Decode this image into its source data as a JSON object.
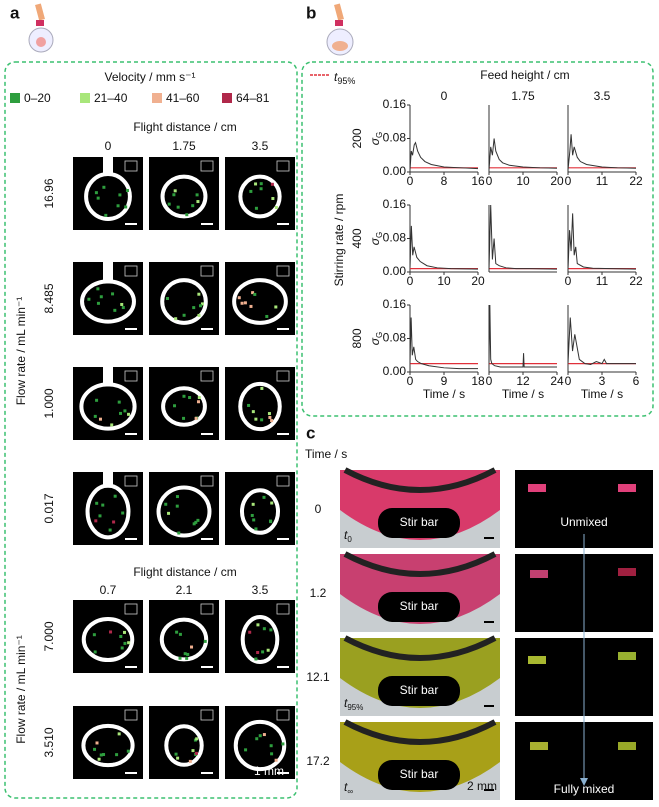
{
  "panel_a": {
    "letter": "a",
    "legend_title": "Velocity / mm s⁻¹",
    "legend": [
      {
        "label": "0–20",
        "color": "#2e9e3e"
      },
      {
        "label": "21–40",
        "color": "#a8e67a"
      },
      {
        "label": "41–60",
        "color": "#f0b090"
      },
      {
        "label": "64–81",
        "color": "#b0284a"
      }
    ],
    "sections": [
      {
        "title": "Flight distance / cm",
        "columns": [
          "0",
          "1.75",
          "3.5"
        ],
        "y_label": "Flow rate / mL min⁻¹",
        "rows": [
          "16.96",
          "8.485",
          "1.000",
          "0.017"
        ]
      },
      {
        "title": "Flight distance / cm",
        "columns": [
          "0.7",
          "2.1",
          "3.5"
        ],
        "y_label": "Flow rate / mL min⁻¹",
        "rows": [
          "7.000",
          "3.510"
        ]
      }
    ],
    "scale_bar": "1 mm"
  },
  "panel_b": {
    "letter": "b",
    "legend": {
      "main": "t",
      "sub": "95%"
    },
    "column_title": "Feed height / cm",
    "columns": [
      "0",
      "1.75",
      "3.5"
    ],
    "row_title": "Stirring rate / rpm",
    "rows": [
      "200",
      "400",
      "800"
    ]
  },
  "panel_c": {
    "letter": "c",
    "time_label": "Time / s",
    "rows": [
      {
        "time": "0",
        "tag": {
          "main": "t",
          "sub": "0"
        }
      },
      {
        "time": "1.2"
      },
      {
        "time": "12.1",
        "tag": {
          "main": "t",
          "sub": "95%"
        }
      },
      {
        "time": "17.2",
        "tag": {
          "main": "t",
          "sub": "∞"
        }
      }
    ],
    "stir_bar": "Stir bar",
    "scale_bar": "2 mm",
    "unmixed": "Unmixed",
    "fully_mixed": "Fully mixed"
  },
  "chart_data": [
    {
      "type": "line",
      "x": [
        0,
        0.3,
        0.6,
        1,
        1.3,
        1.8,
        2.5,
        3.5,
        5,
        8,
        12,
        16
      ],
      "series": [
        {
          "color": "#333333",
          "values": [
            0.005,
            0.05,
            0.04,
            0.065,
            0.07,
            0.05,
            0.035,
            0.025,
            0.018,
            0.012,
            0.01,
            0.008
          ]
        }
      ],
      "threshold": {
        "value": 0.01,
        "color": "#e0303a"
      },
      "xlim": [
        0,
        16
      ],
      "ylim": [
        0,
        0.16
      ],
      "xticks": [
        0,
        8,
        16
      ],
      "yticks": [
        {
          "value": 0,
          "label": "0.00"
        },
        {
          "value": 0.08,
          "label": "0.08"
        },
        {
          "value": 0.16,
          "label": "0.16"
        }
      ],
      "ylabel": {
        "main": "σ",
        "sub": "G"
      }
    },
    {
      "type": "line",
      "x": [
        0,
        0.5,
        1,
        1.5,
        2,
        3,
        4,
        6,
        10,
        15,
        20
      ],
      "series": [
        {
          "color": "#333333",
          "values": [
            0.005,
            0.06,
            0.04,
            0.08,
            0.05,
            0.03,
            0.022,
            0.016,
            0.012,
            0.01,
            0.009
          ]
        }
      ],
      "threshold": {
        "value": 0.01,
        "color": "#e0303a"
      },
      "xlim": [
        0,
        20
      ],
      "ylim": [
        0,
        0.16
      ],
      "xticks": [
        0,
        10,
        20
      ]
    },
    {
      "type": "line",
      "x": [
        0,
        0.6,
        1,
        1.5,
        2,
        3,
        4,
        6,
        11,
        16,
        22
      ],
      "series": [
        {
          "color": "#333333",
          "values": [
            0.005,
            0.05,
            0.09,
            0.04,
            0.06,
            0.035,
            0.025,
            0.018,
            0.012,
            0.01,
            0.009
          ]
        }
      ],
      "threshold": {
        "value": 0.01,
        "color": "#e0303a"
      },
      "xlim": [
        0,
        22
      ],
      "ylim": [
        0,
        0.16
      ],
      "xticks": [
        0,
        11,
        22
      ]
    },
    {
      "type": "line",
      "x": [
        0,
        0.4,
        0.8,
        1.2,
        2,
        3,
        5,
        8,
        12,
        20
      ],
      "series": [
        {
          "color": "#333333",
          "values": [
            0.01,
            0.11,
            0.04,
            0.06,
            0.035,
            0.025,
            0.015,
            0.01,
            0.008,
            0.007
          ]
        }
      ],
      "threshold": {
        "value": 0.008,
        "color": "#e0303a"
      },
      "xlim": [
        0,
        20
      ],
      "ylim": [
        0,
        0.16
      ],
      "xticks": [
        0,
        10,
        20
      ],
      "yticks": [
        {
          "value": 0,
          "label": "0.00"
        },
        {
          "value": 0.08,
          "label": "0.08"
        },
        {
          "value": 0.16,
          "label": "0.16"
        }
      ],
      "ylabel": {
        "main": "σ",
        "sub": "G"
      }
    },
    {
      "type": "line",
      "x": [
        0,
        0.5,
        1,
        1.5,
        2,
        3,
        5,
        8,
        12,
        20
      ],
      "series": [
        {
          "color": "#333333",
          "values": [
            0.005,
            0.16,
            0.03,
            0.08,
            0.02,
            0.015,
            0.01,
            0.008,
            0.008,
            0.007
          ]
        }
      ],
      "threshold": {
        "value": 0.008,
        "color": "#e0303a"
      },
      "xlim": [
        0,
        20
      ],
      "ylim": [
        0,
        0.16
      ]
    },
    {
      "type": "line",
      "x": [
        0,
        0.5,
        1,
        1.5,
        2,
        2.5,
        3,
        5,
        8,
        14,
        22
      ],
      "series": [
        {
          "color": "#333333",
          "values": [
            0.005,
            0.1,
            0.05,
            0.14,
            0.04,
            0.06,
            0.02,
            0.012,
            0.009,
            0.008,
            0.007
          ]
        }
      ],
      "threshold": {
        "value": 0.008,
        "color": "#e0303a"
      },
      "xlim": [
        0,
        22
      ],
      "ylim": [
        0,
        0.16
      ],
      "xticks": [
        0,
        11,
        22
      ]
    },
    {
      "type": "line",
      "x": [
        0,
        0.3,
        0.6,
        1,
        1.5,
        2,
        3,
        5,
        9,
        13,
        18
      ],
      "series": [
        {
          "color": "#333333",
          "values": [
            0.02,
            0.13,
            0.04,
            0.06,
            0.03,
            0.025,
            0.02,
            0.015,
            0.01,
            0.008,
            0.008
          ]
        }
      ],
      "threshold": {
        "value": 0.02,
        "color": "#e0303a"
      },
      "xlim": [
        0,
        18
      ],
      "ylim": [
        0,
        0.16
      ],
      "xticks": [
        0,
        9,
        18
      ],
      "yticks": [
        {
          "value": 0,
          "label": "0.00"
        },
        {
          "value": 0.08,
          "label": "0.08"
        },
        {
          "value": 0.16,
          "label": "0.16"
        }
      ],
      "ylabel": {
        "main": "σ",
        "sub": "G"
      },
      "xlabel": "Time / s"
    },
    {
      "type": "line",
      "x": [
        0,
        0.3,
        0.6,
        1,
        2,
        4,
        8,
        12,
        12.2,
        12.4,
        16,
        20,
        24
      ],
      "series": [
        {
          "color": "#333333",
          "values": [
            0.02,
            0.16,
            0.03,
            0.02,
            0.015,
            0.012,
            0.012,
            0.012,
            0.045,
            0.012,
            0.012,
            0.012,
            0.012
          ]
        }
      ],
      "threshold": {
        "value": 0.02,
        "color": "#e0303a"
      },
      "xlim": [
        0,
        24
      ],
      "ylim": [
        0,
        0.16
      ],
      "xticks": [
        0,
        12,
        24
      ],
      "xlabel": "Time / s"
    },
    {
      "type": "line",
      "x": [
        0,
        0.2,
        0.4,
        0.6,
        1,
        1.5,
        2,
        2.5,
        3,
        3.2,
        3.4,
        4,
        5,
        6
      ],
      "series": [
        {
          "color": "#333333",
          "values": [
            0.02,
            0.13,
            0.05,
            0.09,
            0.03,
            0.02,
            0.018,
            0.025,
            0.02,
            0.03,
            0.02,
            0.02,
            0.02,
            0.02
          ]
        }
      ],
      "threshold": {
        "value": 0.02,
        "color": "#e0303a"
      },
      "xlim": [
        0,
        6
      ],
      "ylim": [
        0,
        0.16
      ],
      "xticks": [
        0,
        3,
        6
      ],
      "xlabel": "Time / s"
    }
  ]
}
